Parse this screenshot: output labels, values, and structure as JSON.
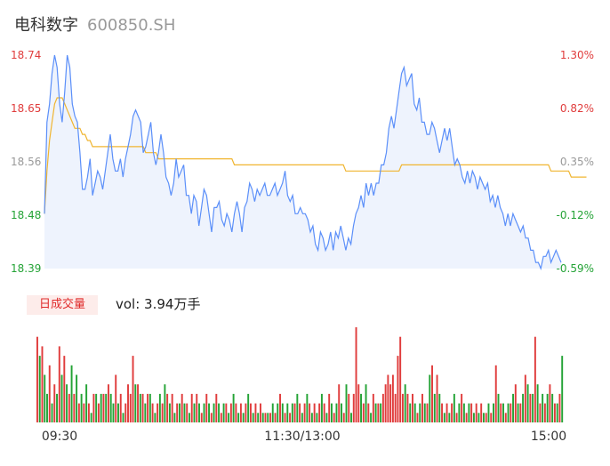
{
  "header": {
    "name": "电科数字",
    "code": "600850.SH"
  },
  "volume_panel": {
    "period_label": "日成交量",
    "vol_text": "vol: 3.94万手"
  },
  "colors": {
    "price_line": "#5b8ff9",
    "avg_line": "#f0b530",
    "up": "#e03c3c",
    "down": "#24a336",
    "area_fill": "#eef3fd"
  },
  "chart_data": [
    {
      "type": "line",
      "title": "",
      "y_ticks_left": [
        "18.74",
        "18.65",
        "18.56",
        "18.48",
        "18.39"
      ],
      "y_ticks_right": [
        "1.30%",
        "0.82%",
        "0.35%",
        "-0.12%",
        "-0.59%"
      ],
      "ylim": [
        18.39,
        18.74
      ],
      "x_ticks": [
        "09:30",
        "11:30/13:00",
        "15:00"
      ],
      "series": [
        {
          "values": [
            18.48,
            18.63,
            18.66,
            18.71,
            18.74,
            18.72,
            18.66,
            18.63,
            18.68,
            18.74,
            18.72,
            18.66,
            18.64,
            18.63,
            18.58,
            18.52,
            18.52,
            18.54,
            18.57,
            18.51,
            18.53,
            18.55,
            18.54,
            18.52,
            18.55,
            18.58,
            18.61,
            18.57,
            18.55,
            18.55,
            18.57,
            18.54,
            18.57,
            18.59,
            18.61,
            18.64,
            18.65,
            18.64,
            18.63,
            18.58,
            18.59,
            18.61,
            18.63,
            18.58,
            18.56,
            18.58,
            18.61,
            18.58,
            18.54,
            18.53,
            18.51,
            18.53,
            18.57,
            18.54,
            18.55,
            18.56,
            18.51,
            18.51,
            18.48,
            18.51,
            18.5,
            18.46,
            18.49,
            18.52,
            18.51,
            18.48,
            18.45,
            18.49,
            18.49,
            18.5,
            18.47,
            18.46,
            18.48,
            18.47,
            18.45,
            18.48,
            18.5,
            18.48,
            18.45,
            18.49,
            18.5,
            18.53,
            18.52,
            18.5,
            18.52,
            18.51,
            18.52,
            18.53,
            18.51,
            18.51,
            18.52,
            18.53,
            18.51,
            18.52,
            18.53,
            18.55,
            18.51,
            18.5,
            18.51,
            18.48,
            18.48,
            18.49,
            18.48,
            18.48,
            18.47,
            18.45,
            18.46,
            18.43,
            18.42,
            18.45,
            18.44,
            18.42,
            18.43,
            18.45,
            18.42,
            18.45,
            18.44,
            18.46,
            18.44,
            18.42,
            18.44,
            18.43,
            18.46,
            18.48,
            18.49,
            18.51,
            18.49,
            18.53,
            18.51,
            18.53,
            18.51,
            18.53,
            18.53,
            18.56,
            18.56,
            18.58,
            18.62,
            18.64,
            18.62,
            18.65,
            18.68,
            18.71,
            18.72,
            18.69,
            18.7,
            18.71,
            18.66,
            18.65,
            18.67,
            18.63,
            18.63,
            18.61,
            18.61,
            18.63,
            18.62,
            18.6,
            18.58,
            18.6,
            18.62,
            18.6,
            18.62,
            18.59,
            18.56,
            18.57,
            18.56,
            18.54,
            18.53,
            18.55,
            18.53,
            18.55,
            18.54,
            18.52,
            18.54,
            18.53,
            18.52,
            18.53,
            18.5,
            18.51,
            18.49,
            18.51,
            18.49,
            18.48,
            18.46,
            18.48,
            18.46,
            18.48,
            18.47,
            18.46,
            18.45,
            18.46,
            18.44,
            18.44,
            18.42,
            18.42,
            18.4,
            18.4,
            18.39,
            18.41,
            18.41,
            18.42,
            18.4,
            18.41,
            18.42,
            18.41,
            18.4
          ]
        },
        {
          "values": [
            18.48,
            18.55,
            18.6,
            18.63,
            18.66,
            18.67,
            18.67,
            18.67,
            18.66,
            18.65,
            18.64,
            18.63,
            18.62,
            18.62,
            18.62,
            18.61,
            18.61,
            18.6,
            18.6,
            18.59,
            18.59,
            18.59,
            18.59,
            18.59,
            18.59,
            18.59,
            18.59,
            18.59,
            18.59,
            18.59,
            18.59,
            18.59,
            18.59,
            18.59,
            18.59,
            18.59,
            18.59,
            18.59,
            18.59,
            18.59,
            18.58,
            18.58,
            18.58,
            18.58,
            18.58,
            18.57,
            18.57,
            18.57,
            18.57,
            18.57,
            18.57,
            18.57,
            18.57,
            18.57,
            18.57,
            18.57,
            18.57,
            18.57,
            18.57,
            18.57,
            18.57,
            18.57,
            18.57,
            18.57,
            18.57,
            18.57,
            18.57,
            18.57,
            18.57,
            18.57,
            18.57,
            18.57,
            18.57,
            18.57,
            18.57,
            18.56,
            18.56,
            18.56,
            18.56,
            18.56,
            18.56,
            18.56,
            18.56,
            18.56,
            18.56,
            18.56,
            18.56,
            18.56,
            18.56,
            18.56,
            18.56,
            18.56,
            18.56,
            18.56,
            18.56,
            18.56,
            18.56,
            18.56,
            18.56,
            18.56,
            18.56,
            18.56,
            18.56,
            18.56,
            18.56,
            18.56,
            18.56,
            18.56,
            18.56,
            18.56,
            18.56,
            18.56,
            18.56,
            18.56,
            18.56,
            18.56,
            18.56,
            18.56,
            18.56,
            18.55,
            18.55,
            18.55,
            18.55,
            18.55,
            18.55,
            18.55,
            18.55,
            18.55,
            18.55,
            18.55,
            18.55,
            18.55,
            18.55,
            18.55,
            18.55,
            18.55,
            18.55,
            18.55,
            18.55,
            18.55,
            18.55,
            18.56,
            18.56,
            18.56,
            18.56,
            18.56,
            18.56,
            18.56,
            18.56,
            18.56,
            18.56,
            18.56,
            18.56,
            18.56,
            18.56,
            18.56,
            18.56,
            18.56,
            18.56,
            18.56,
            18.56,
            18.56,
            18.56,
            18.56,
            18.56,
            18.56,
            18.56,
            18.56,
            18.56,
            18.56,
            18.56,
            18.56,
            18.56,
            18.56,
            18.56,
            18.56,
            18.56,
            18.56,
            18.56,
            18.56,
            18.56,
            18.56,
            18.56,
            18.56,
            18.56,
            18.56,
            18.56,
            18.56,
            18.56,
            18.56,
            18.56,
            18.56,
            18.56,
            18.56,
            18.56,
            18.56,
            18.56,
            18.56,
            18.56,
            18.56,
            18.55,
            18.55,
            18.55,
            18.55,
            18.55,
            18.55,
            18.55,
            18.55,
            18.54,
            18.54,
            18.54,
            18.54,
            18.54,
            18.54,
            18.54
          ]
        }
      ]
    },
    {
      "type": "bar",
      "title": "",
      "values": [
        0.9,
        0.7,
        0.8,
        0.5,
        0.3,
        0.6,
        0.2,
        0.4,
        0.3,
        0.8,
        0.5,
        0.7,
        0.4,
        0.3,
        0.6,
        0.3,
        0.5,
        0.2,
        0.3,
        0.2,
        0.4,
        0.2,
        0.1,
        0.3,
        0.3,
        0.2,
        0.3,
        0.3,
        0.3,
        0.4,
        0.3,
        0.2,
        0.5,
        0.2,
        0.3,
        0.1,
        0.2,
        0.4,
        0.3,
        0.7,
        0.4,
        0.4,
        0.3,
        0.3,
        0.2,
        0.3,
        0.3,
        0.2,
        0.1,
        0.2,
        0.3,
        0.2,
        0.4,
        0.3,
        0.2,
        0.3,
        0.1,
        0.2,
        0.2,
        0.3,
        0.2,
        0.2,
        0.1,
        0.3,
        0.2,
        0.3,
        0.2,
        0.1,
        0.2,
        0.3,
        0.2,
        0.1,
        0.2,
        0.3,
        0.2,
        0.1,
        0.2,
        0.2,
        0.1,
        0.2,
        0.3,
        0.2,
        0.1,
        0.2,
        0.1,
        0.2,
        0.3,
        0.2,
        0.1,
        0.2,
        0.1,
        0.2,
        0.1,
        0.1,
        0.1,
        0.1,
        0.2,
        0.1,
        0.2,
        0.3,
        0.2,
        0.1,
        0.2,
        0.1,
        0.2,
        0.2,
        0.3,
        0.2,
        0.1,
        0.2,
        0.3,
        0.2,
        0.1,
        0.2,
        0.1,
        0.2,
        0.3,
        0.2,
        0.1,
        0.3,
        0.2,
        0.1,
        0.2,
        0.4,
        0.2,
        0.1,
        0.4,
        0.3,
        0.1,
        0.3,
        1.0,
        0.4,
        0.3,
        0.2,
        0.4,
        0.2,
        0.1,
        0.3,
        0.2,
        0.2,
        0.2,
        0.3,
        0.4,
        0.5,
        0.4,
        0.5,
        0.3,
        0.7,
        0.9,
        0.3,
        0.4,
        0.3,
        0.2,
        0.3,
        0.2,
        0.1,
        0.2,
        0.3,
        0.2,
        0.2,
        0.5,
        0.6,
        0.3,
        0.5,
        0.3,
        0.2,
        0.1,
        0.2,
        0.1,
        0.2,
        0.3,
        0.1,
        0.2,
        0.3,
        0.2,
        0.1,
        0.2,
        0.2,
        0.1,
        0.2,
        0.1,
        0.2,
        0.1,
        0.1,
        0.2,
        0.1,
        0.2,
        0.6,
        0.3,
        0.2,
        0.2,
        0.1,
        0.2,
        0.2,
        0.3,
        0.4,
        0.2,
        0.2,
        0.3,
        0.5,
        0.4,
        0.3,
        0.3,
        0.9,
        0.4,
        0.2,
        0.3,
        0.2,
        0.3,
        0.4,
        0.3,
        0.2,
        0.2,
        0.3,
        0.7
      ],
      "up": [
        1,
        0,
        1,
        0,
        0,
        1,
        0,
        1,
        0,
        1,
        0,
        1,
        0,
        1,
        0,
        1,
        0,
        1,
        0,
        1,
        0,
        1,
        0,
        1,
        0,
        1,
        0,
        1,
        0,
        1,
        0,
        0,
        1,
        0,
        1,
        0,
        1,
        1,
        1,
        1,
        0,
        1,
        0,
        1,
        0,
        1,
        0,
        1,
        0,
        1,
        0,
        1,
        0,
        1,
        0,
        1,
        0,
        1,
        0,
        1,
        0,
        1,
        0,
        1,
        0,
        1,
        0,
        1,
        0,
        1,
        0,
        1,
        0,
        1,
        0,
        1,
        0,
        1,
        0,
        1,
        0,
        1,
        0,
        1,
        0,
        1,
        0,
        1,
        0,
        1,
        0,
        1,
        0,
        1,
        0,
        1,
        0,
        1,
        0,
        1,
        0,
        1,
        0,
        1,
        0,
        1,
        0,
        1,
        0,
        1,
        0,
        1,
        0,
        1,
        0,
        1,
        0,
        1,
        0,
        1,
        0,
        1,
        0,
        1,
        0,
        1,
        0,
        1,
        0,
        1,
        1,
        1,
        0,
        1,
        0,
        1,
        0,
        1,
        0,
        1,
        0,
        1,
        1,
        1,
        1,
        1,
        1,
        1,
        1,
        1,
        0,
        1,
        0,
        1,
        0,
        1,
        0,
        1,
        0,
        1,
        0,
        1,
        0,
        1,
        0,
        1,
        0,
        1,
        0,
        1,
        0,
        1,
        0,
        1,
        0,
        1,
        0,
        1,
        0,
        1,
        0,
        1,
        0,
        1,
        0,
        1,
        0,
        1,
        0,
        1,
        0,
        1,
        0,
        1,
        0,
        1,
        0,
        1,
        0,
        1,
        0,
        1,
        0,
        1,
        0,
        1,
        0,
        1,
        0,
        1,
        0,
        1,
        0,
        1,
        0,
        1,
        0,
        1,
        0,
        1,
        0,
        0
      ]
    }
  ]
}
